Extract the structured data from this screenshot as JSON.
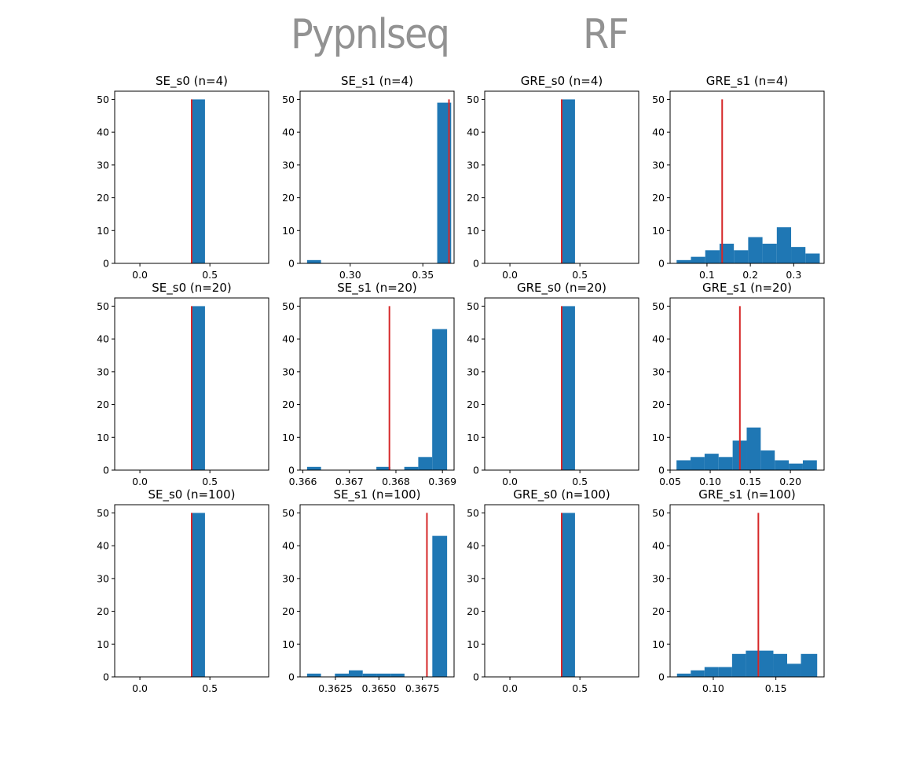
{
  "handwritten_labels": [
    "Pypnlseq",
    "RF"
  ],
  "colors": {
    "bar": "#1f77b4",
    "marker": "#d62728",
    "axis": "#000000",
    "background": "#ffffff"
  },
  "chart_data": [
    {
      "type": "bar",
      "title": "SE_s0 (n=4)",
      "xlim": [
        -0.18,
        0.92
      ],
      "ylim": [
        0,
        52.5
      ],
      "xticks": [
        0.0,
        0.5
      ],
      "xtick_labels": [
        "0.0",
        "0.5"
      ],
      "yticks": [
        0,
        10,
        20,
        30,
        40,
        50
      ],
      "bins": [
        {
          "x0": 0.375,
          "x1": 0.465,
          "count": 50
        }
      ],
      "vline": {
        "x": 0.37,
        "y0": 0,
        "y1": 50
      }
    },
    {
      "type": "bar",
      "title": "SE_s1 (n=4)",
      "xlim": [
        0.2655,
        0.3715
      ],
      "ylim": [
        0,
        52.5
      ],
      "xticks": [
        0.3,
        0.35
      ],
      "xtick_labels": [
        "0.30",
        "0.35"
      ],
      "yticks": [
        0,
        10,
        20,
        30,
        40,
        50
      ],
      "bins": [
        {
          "x0": 0.2703,
          "x1": 0.2799,
          "count": 1
        },
        {
          "x0": 0.3599,
          "x1": 0.3695,
          "count": 49
        }
      ],
      "vline": {
        "x": 0.368,
        "y0": 0,
        "y1": 50
      }
    },
    {
      "type": "bar",
      "title": "GRE_s0 (n=4)",
      "xlim": [
        -0.18,
        0.92
      ],
      "ylim": [
        0,
        52.5
      ],
      "xticks": [
        0.0,
        0.5
      ],
      "xtick_labels": [
        "0.0",
        "0.5"
      ],
      "yticks": [
        0,
        10,
        20,
        30,
        40,
        50
      ],
      "bins": [
        {
          "x0": 0.375,
          "x1": 0.465,
          "count": 50
        }
      ],
      "vline": {
        "x": 0.37,
        "y0": 0,
        "y1": 50
      }
    },
    {
      "type": "bar",
      "title": "GRE_s1 (n=4)",
      "xlim": [
        0.015,
        0.37
      ],
      "ylim": [
        0,
        52.5
      ],
      "xticks": [
        0.1,
        0.2,
        0.3
      ],
      "xtick_labels": [
        "0.1",
        "0.2",
        "0.3"
      ],
      "yticks": [
        0,
        10,
        20,
        30,
        40,
        50
      ],
      "bins": [
        {
          "x0": 0.03,
          "x1": 0.063,
          "count": 1
        },
        {
          "x0": 0.063,
          "x1": 0.096,
          "count": 2
        },
        {
          "x0": 0.096,
          "x1": 0.129,
          "count": 4
        },
        {
          "x0": 0.129,
          "x1": 0.162,
          "count": 6
        },
        {
          "x0": 0.162,
          "x1": 0.195,
          "count": 4
        },
        {
          "x0": 0.195,
          "x1": 0.228,
          "count": 8
        },
        {
          "x0": 0.228,
          "x1": 0.261,
          "count": 6
        },
        {
          "x0": 0.261,
          "x1": 0.294,
          "count": 11
        },
        {
          "x0": 0.294,
          "x1": 0.327,
          "count": 5
        },
        {
          "x0": 0.327,
          "x1": 0.36,
          "count": 3
        }
      ],
      "vline": {
        "x": 0.135,
        "y0": 0,
        "y1": 50
      }
    },
    {
      "type": "bar",
      "title": "SE_s0 (n=20)",
      "xlim": [
        -0.18,
        0.92
      ],
      "ylim": [
        0,
        52.5
      ],
      "xticks": [
        0.0,
        0.5
      ],
      "xtick_labels": [
        "0.0",
        "0.5"
      ],
      "yticks": [
        0,
        10,
        20,
        30,
        40,
        50
      ],
      "bins": [
        {
          "x0": 0.375,
          "x1": 0.465,
          "count": 50
        }
      ],
      "vline": {
        "x": 0.37,
        "y0": 0,
        "y1": 50
      }
    },
    {
      "type": "bar",
      "title": "SE_s1 (n=20)",
      "xlim": [
        0.36594,
        0.36925
      ],
      "ylim": [
        0,
        52.5
      ],
      "xticks": [
        0.366,
        0.367,
        0.368,
        0.369
      ],
      "xtick_labels": [
        "0.366",
        "0.367",
        "0.368",
        "0.369"
      ],
      "yticks": [
        0,
        10,
        20,
        30,
        40,
        50
      ],
      "bins": [
        {
          "x0": 0.36609,
          "x1": 0.36639,
          "count": 1
        },
        {
          "x0": 0.36758,
          "x1": 0.36788,
          "count": 1
        },
        {
          "x0": 0.36818,
          "x1": 0.36848,
          "count": 1
        },
        {
          "x0": 0.36848,
          "x1": 0.36878,
          "count": 4
        },
        {
          "x0": 0.36878,
          "x1": 0.3691,
          "count": 43
        }
      ],
      "vline": {
        "x": 0.36786,
        "y0": 0,
        "y1": 50
      }
    },
    {
      "type": "bar",
      "title": "GRE_s0 (n=20)",
      "xlim": [
        -0.18,
        0.92
      ],
      "ylim": [
        0,
        52.5
      ],
      "xticks": [
        0.0,
        0.5
      ],
      "xtick_labels": [
        "0.0",
        "0.5"
      ],
      "yticks": [
        0,
        10,
        20,
        30,
        40,
        50
      ],
      "bins": [
        {
          "x0": 0.375,
          "x1": 0.465,
          "count": 50
        }
      ],
      "vline": {
        "x": 0.37,
        "y0": 0,
        "y1": 50
      }
    },
    {
      "type": "bar",
      "title": "GRE_s1 (n=20)",
      "xlim": [
        0.05,
        0.242
      ],
      "ylim": [
        0,
        52.5
      ],
      "xticks": [
        0.05,
        0.1,
        0.15,
        0.2
      ],
      "xtick_labels": [
        "0.05",
        "0.10",
        "0.15",
        "0.20"
      ],
      "yticks": [
        0,
        10,
        20,
        30,
        40,
        50
      ],
      "bins": [
        {
          "x0": 0.058,
          "x1": 0.0755,
          "count": 3
        },
        {
          "x0": 0.0755,
          "x1": 0.093,
          "count": 4
        },
        {
          "x0": 0.093,
          "x1": 0.1105,
          "count": 5
        },
        {
          "x0": 0.1105,
          "x1": 0.128,
          "count": 4
        },
        {
          "x0": 0.128,
          "x1": 0.1455,
          "count": 9
        },
        {
          "x0": 0.1455,
          "x1": 0.163,
          "count": 13
        },
        {
          "x0": 0.163,
          "x1": 0.1805,
          "count": 6
        },
        {
          "x0": 0.1805,
          "x1": 0.198,
          "count": 3
        },
        {
          "x0": 0.198,
          "x1": 0.2155,
          "count": 2
        },
        {
          "x0": 0.2155,
          "x1": 0.233,
          "count": 3
        }
      ],
      "vline": {
        "x": 0.137,
        "y0": 0,
        "y1": 50
      }
    },
    {
      "type": "bar",
      "title": "SE_s0 (n=100)",
      "xlim": [
        -0.18,
        0.92
      ],
      "ylim": [
        0,
        52.5
      ],
      "xticks": [
        0.0,
        0.5
      ],
      "xtick_labels": [
        "0.0",
        "0.5"
      ],
      "yticks": [
        0,
        10,
        20,
        30,
        40,
        50
      ],
      "bins": [
        {
          "x0": 0.375,
          "x1": 0.465,
          "count": 50
        }
      ],
      "vline": {
        "x": 0.37,
        "y0": 0,
        "y1": 50
      }
    },
    {
      "type": "bar",
      "title": "SE_s1 (n=100)",
      "xlim": [
        0.36047,
        0.36932
      ],
      "ylim": [
        0,
        52.5
      ],
      "xticks": [
        0.3625,
        0.365,
        0.3675
      ],
      "xtick_labels": [
        "0.3625",
        "0.3650",
        "0.3675"
      ],
      "yticks": [
        0,
        10,
        20,
        30,
        40,
        50
      ],
      "bins": [
        {
          "x0": 0.36087,
          "x1": 0.36167,
          "count": 1
        },
        {
          "x0": 0.36247,
          "x1": 0.36327,
          "count": 1
        },
        {
          "x0": 0.36327,
          "x1": 0.36407,
          "count": 2
        },
        {
          "x0": 0.36407,
          "x1": 0.36487,
          "count": 1
        },
        {
          "x0": 0.36487,
          "x1": 0.36567,
          "count": 1
        },
        {
          "x0": 0.36567,
          "x1": 0.36647,
          "count": 1
        },
        {
          "x0": 0.36807,
          "x1": 0.36892,
          "count": 43
        }
      ],
      "vline": {
        "x": 0.36776,
        "y0": 0,
        "y1": 50
      }
    },
    {
      "type": "bar",
      "title": "GRE_s0 (n=100)",
      "xlim": [
        -0.18,
        0.92
      ],
      "ylim": [
        0,
        52.5
      ],
      "xticks": [
        0.0,
        0.5
      ],
      "xtick_labels": [
        "0.0",
        "0.5"
      ],
      "yticks": [
        0,
        10,
        20,
        30,
        40,
        50
      ],
      "bins": [
        {
          "x0": 0.375,
          "x1": 0.465,
          "count": 50
        }
      ],
      "vline": {
        "x": 0.37,
        "y0": 0,
        "y1": 50
      }
    },
    {
      "type": "bar",
      "title": "GRE_s1 (n=100)",
      "xlim": [
        0.0655,
        0.1885
      ],
      "ylim": [
        0,
        52.5
      ],
      "xticks": [
        0.1,
        0.15
      ],
      "xtick_labels": [
        "0.10",
        "0.15"
      ],
      "yticks": [
        0,
        10,
        20,
        30,
        40,
        50
      ],
      "bins": [
        {
          "x0": 0.071,
          "x1": 0.082,
          "count": 1
        },
        {
          "x0": 0.082,
          "x1": 0.093,
          "count": 2
        },
        {
          "x0": 0.093,
          "x1": 0.104,
          "count": 3
        },
        {
          "x0": 0.104,
          "x1": 0.115,
          "count": 3
        },
        {
          "x0": 0.115,
          "x1": 0.126,
          "count": 7
        },
        {
          "x0": 0.126,
          "x1": 0.137,
          "count": 8
        },
        {
          "x0": 0.137,
          "x1": 0.148,
          "count": 8
        },
        {
          "x0": 0.148,
          "x1": 0.159,
          "count": 7
        },
        {
          "x0": 0.159,
          "x1": 0.17,
          "count": 4
        },
        {
          "x0": 0.17,
          "x1": 0.183,
          "count": 7
        }
      ],
      "vline": {
        "x": 0.136,
        "y0": 0,
        "y1": 50
      }
    }
  ]
}
